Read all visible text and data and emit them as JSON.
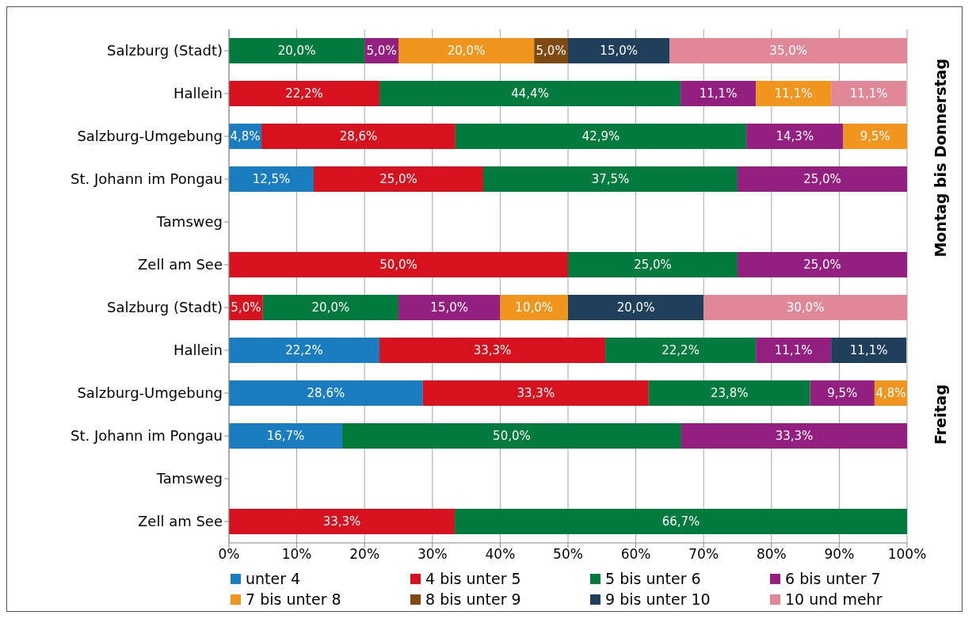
{
  "chart_data": {
    "type": "bar",
    "orientation": "horizontal",
    "stacked": true,
    "grid": "x",
    "legend": "bottom",
    "xlim": [
      0,
      100
    ],
    "xticks": [
      {
        "value": 0,
        "label": "0%"
      },
      {
        "value": 10,
        "label": "10%"
      },
      {
        "value": 20,
        "label": "20%"
      },
      {
        "value": 30,
        "label": "30%"
      },
      {
        "value": 40,
        "label": "40%"
      },
      {
        "value": 50,
        "label": "50%"
      },
      {
        "value": 60,
        "label": "60%"
      },
      {
        "value": 70,
        "label": "70%"
      },
      {
        "value": 80,
        "label": "80%"
      },
      {
        "value": 90,
        "label": "90%"
      },
      {
        "value": 100,
        "label": "100%"
      }
    ],
    "annotations": [
      "Montag bis Donnerstag",
      "Freitag"
    ],
    "categories": [
      "Salzburg (Stadt)",
      "Hallein",
      "Salzburg-Umgebung",
      "St. Johann im Pongau",
      "Tamsweg",
      "Zell am See",
      "Salzburg (Stadt)",
      "Hallein",
      "Salzburg-Umgebung",
      "St. Johann im Pongau",
      "Tamsweg",
      "Zell am See"
    ],
    "series": [
      {
        "name": "unter 4",
        "color": "#1a7dc0",
        "values": [
          null,
          null,
          4.8,
          12.5,
          null,
          null,
          null,
          22.2,
          28.6,
          16.7,
          null,
          null
        ],
        "value_labels": [
          null,
          null,
          "4,8%",
          "12,5%",
          null,
          null,
          null,
          "22,2%",
          "28,6%",
          "16,7%",
          null,
          null
        ]
      },
      {
        "name": "4 bis unter 5",
        "color": "#d7121f",
        "values": [
          null,
          22.2,
          28.6,
          25.0,
          null,
          50.0,
          5.0,
          33.3,
          33.3,
          null,
          null,
          33.3
        ],
        "value_labels": [
          null,
          "22,2%",
          "28,6%",
          "25,0%",
          null,
          "50,0%",
          "5,0%",
          "33,3%",
          "33,3%",
          null,
          null,
          "33,3%"
        ]
      },
      {
        "name": "5 bis unter 6",
        "color": "#007a3d",
        "values": [
          20.0,
          44.4,
          42.9,
          37.5,
          null,
          25.0,
          20.0,
          22.2,
          23.8,
          50.0,
          null,
          66.7
        ],
        "value_labels": [
          "20,0%",
          "44,4%",
          "42,9%",
          "37,5%",
          null,
          "25,0%",
          "20,0%",
          "22,2%",
          "23,8%",
          "50,0%",
          null,
          "66,7%"
        ]
      },
      {
        "name": "6 bis unter 7",
        "color": "#931f80",
        "values": [
          5.0,
          11.1,
          14.3,
          25.0,
          null,
          25.0,
          15.0,
          11.1,
          9.5,
          33.3,
          null,
          null
        ],
        "value_labels": [
          "5,0%",
          "11,1%",
          "14,3%",
          "25,0%",
          null,
          "25,0%",
          "15,0%",
          "11,1%",
          "9,5%",
          "33,3%",
          null,
          null
        ]
      },
      {
        "name": "7 bis unter 8",
        "color": "#f0961e",
        "values": [
          20.0,
          11.1,
          9.5,
          null,
          null,
          null,
          10.0,
          null,
          4.8,
          null,
          null,
          null
        ],
        "value_labels": [
          "20,0%",
          "11,1%",
          "9,5%",
          null,
          null,
          null,
          "10,0%",
          null,
          "4,8%",
          null,
          null,
          null
        ]
      },
      {
        "name": "8 bis unter 9",
        "color": "#7f4a0f",
        "values": [
          5.0,
          null,
          null,
          null,
          null,
          null,
          null,
          null,
          null,
          null,
          null,
          null
        ],
        "value_labels": [
          "5,0%",
          null,
          null,
          null,
          null,
          null,
          null,
          null,
          null,
          null,
          null,
          null
        ]
      },
      {
        "name": "9 bis unter 10",
        "color": "#1f3f5a",
        "values": [
          15.0,
          null,
          null,
          null,
          null,
          null,
          20.0,
          11.1,
          null,
          null,
          null,
          null
        ],
        "value_labels": [
          "15,0%",
          null,
          null,
          null,
          null,
          null,
          "20,0%",
          "11,1%",
          null,
          null,
          null,
          null
        ]
      },
      {
        "name": "10 und mehr",
        "color": "#e08898",
        "values": [
          35.0,
          11.1,
          null,
          null,
          null,
          null,
          30.0,
          null,
          null,
          null,
          null,
          null
        ],
        "value_labels": [
          "35,0%",
          "11,1%",
          null,
          null,
          null,
          null,
          "30,0%",
          null,
          null,
          null,
          null,
          null
        ]
      }
    ]
  }
}
